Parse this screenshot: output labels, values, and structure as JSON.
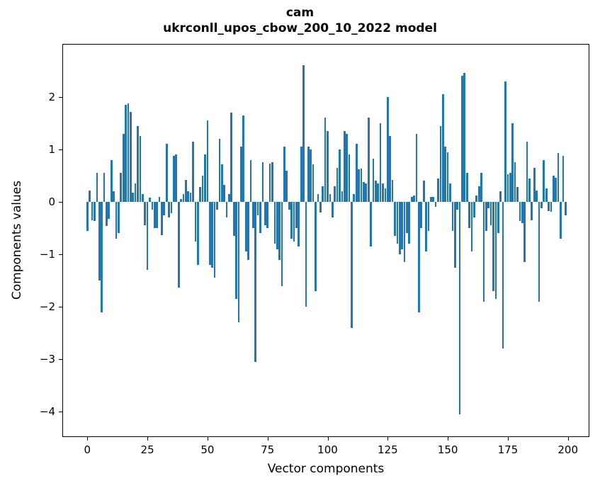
{
  "title_line1": "cam",
  "title_line2": "ukrconll_upos_cbow_200_10_2022 model",
  "chart_data": {
    "type": "bar",
    "title": "cam",
    "subtitle": "ukrconll_upos_cbow_200_10_2022 model",
    "xlabel": "Vector components",
    "ylabel": "Components values",
    "bar_color": "#1f77b4",
    "grid": false,
    "legend": false,
    "n_bars": 200,
    "xticks": [
      0,
      25,
      50,
      75,
      100,
      125,
      150,
      175,
      200
    ],
    "yticks": [
      2,
      1,
      0,
      -1,
      -2,
      -3,
      -4
    ],
    "xlim": [
      -10.9,
      209.9
    ],
    "ylim": [
      -4.48,
      3.01
    ],
    "values": [
      -0.55,
      0.22,
      -0.35,
      -0.36,
      0.55,
      -1.5,
      -2.1,
      0.55,
      -0.46,
      -0.32,
      0.8,
      0.2,
      -0.7,
      -0.6,
      0.55,
      1.3,
      1.85,
      1.87,
      1.72,
      0.17,
      0.35,
      1.45,
      1.25,
      0.15,
      -0.45,
      -1.3,
      0.08,
      -0.15,
      -0.5,
      -0.5,
      0.1,
      -0.63,
      -0.25,
      1.1,
      -0.3,
      -0.22,
      0.88,
      0.91,
      -1.63,
      0.05,
      0.15,
      0.42,
      0.2,
      0.18,
      1.15,
      -0.75,
      -1.2,
      0.28,
      0.5,
      0.9,
      1.55,
      -1.2,
      -1.25,
      -1.45,
      -0.15,
      1.2,
      0.72,
      0.33,
      -0.3,
      0.15,
      1.7,
      -0.65,
      -1.85,
      -2.3,
      1.05,
      1.65,
      -0.95,
      -1.1,
      0.8,
      -0.5,
      -3.05,
      -0.25,
      -0.6,
      0.75,
      -0.45,
      -0.5,
      0.73,
      0.76,
      -0.8,
      -0.9,
      -1.1,
      -1.6,
      1.05,
      0.6,
      -0.15,
      -0.7,
      -0.75,
      -0.5,
      -0.85,
      1.05,
      2.6,
      -2.0,
      1.05,
      1.0,
      0.72,
      -1.7,
      0.15,
      -0.2,
      0.3,
      1.6,
      1.35,
      0.15,
      -0.3,
      0.3,
      0.65,
      1.0,
      0.2,
      1.35,
      1.3,
      0.9,
      -2.4,
      0.15,
      1.1,
      0.62,
      0.64,
      0.38,
      0.35,
      1.6,
      -0.85,
      0.82,
      0.4,
      0.35,
      1.5,
      0.35,
      0.25,
      2.0,
      1.25,
      0.42,
      -0.65,
      -0.8,
      -1.0,
      -0.9,
      -1.15,
      -0.6,
      -0.8,
      0.1,
      0.12,
      1.3,
      -2.1,
      -0.5,
      0.4,
      -0.95,
      -0.55,
      0.1,
      0.1,
      -0.1,
      0.45,
      1.45,
      2.05,
      1.05,
      0.95,
      0.35,
      -0.55,
      -1.25,
      -0.15,
      -4.05,
      2.4,
      2.45,
      0.55,
      -0.5,
      -0.95,
      -0.3,
      0.12,
      0.3,
      0.55,
      -1.9,
      -0.55,
      -0.12,
      -0.45,
      -1.7,
      -1.85,
      -0.6,
      0.2,
      -2.8,
      2.3,
      0.52,
      0.56,
      1.5,
      0.76,
      0.28,
      -0.37,
      -0.41,
      -1.15,
      1.15,
      0.45,
      -0.35,
      0.65,
      0.22,
      -1.9,
      -0.12,
      0.8,
      0.25,
      -0.17,
      -0.19,
      0.5,
      0.46,
      0.93,
      -0.7,
      0.88,
      -0.26
    ]
  }
}
